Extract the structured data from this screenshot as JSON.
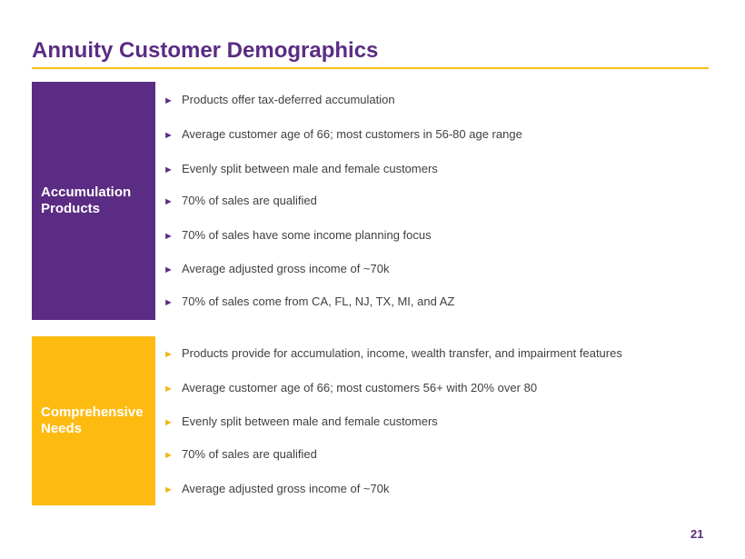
{
  "title": "Annuity Customer Demographics",
  "colors": {
    "purple": "#5b2c83",
    "yellow": "#fdbb12",
    "text": "#404040"
  },
  "bullet_marker": "►",
  "sections": {
    "accumulation": {
      "label_line1": "Accumulation",
      "label_line2": "Products",
      "bullets": [
        "Products offer tax-deferred accumulation",
        "Average customer age of 66; most customers in 56-80 age range",
        "Evenly split between male and female customers",
        "70% of sales are qualified",
        "70% of sales have some income planning focus",
        "Average adjusted gross income of ~70k",
        "70% of sales come from CA, FL, NJ, TX, MI, and AZ"
      ]
    },
    "comprehensive": {
      "label_line1": "Comprehensive",
      "label_line2": "Needs",
      "bullets": [
        "Products provide for accumulation, income, wealth transfer, and impairment features",
        "Average customer age of 66; most customers 56+ with 20% over 80",
        "Evenly split between male and female customers",
        "70% of sales are qualified",
        "Average adjusted gross income of ~70k"
      ]
    }
  },
  "page_number": "21"
}
